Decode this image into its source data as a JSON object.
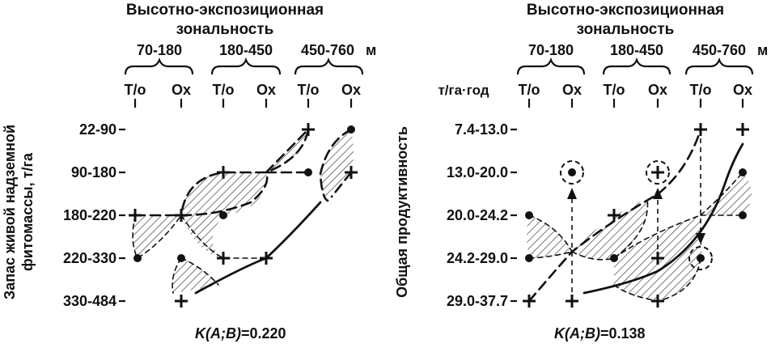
{
  "left_panel": {
    "title_line1": "Высотно-экспозиционная",
    "title_line2": "зональность",
    "zones": [
      "70-180",
      "180-450",
      "450-760"
    ],
    "zone_unit": "м",
    "aspects": [
      "Т/о",
      "Ох",
      "Т/о",
      "Ох",
      "Т/о",
      "Ох"
    ],
    "y_axis_label_line1": "Запас живой надземной",
    "y_axis_label_line2": "фитомассы, т/га",
    "y_classes": [
      "22-90",
      "90-180",
      "180-220",
      "220-330",
      "330-484"
    ],
    "k_prefix": "K(A;B)",
    "k_value": "=0.220"
  },
  "right_panel": {
    "title_line1": "Высотно-экспозиционная",
    "title_line2": "зональность",
    "zones": [
      "70-180",
      "180-450",
      "450-760"
    ],
    "zone_unit": "м",
    "aspects": [
      "Т/о",
      "Ох",
      "Т/о",
      "Ох",
      "Т/о",
      "Ох"
    ],
    "unit_label": "т/га·год",
    "y_axis_label": "Общая продуктивность",
    "y_classes": [
      "7.4-13.0",
      "13.0-20.0",
      "20.0-24.2",
      "24.2-29.0",
      "29.0-37.7"
    ],
    "k_prefix": "K(A;B)",
    "k_value": "=0.138"
  }
}
